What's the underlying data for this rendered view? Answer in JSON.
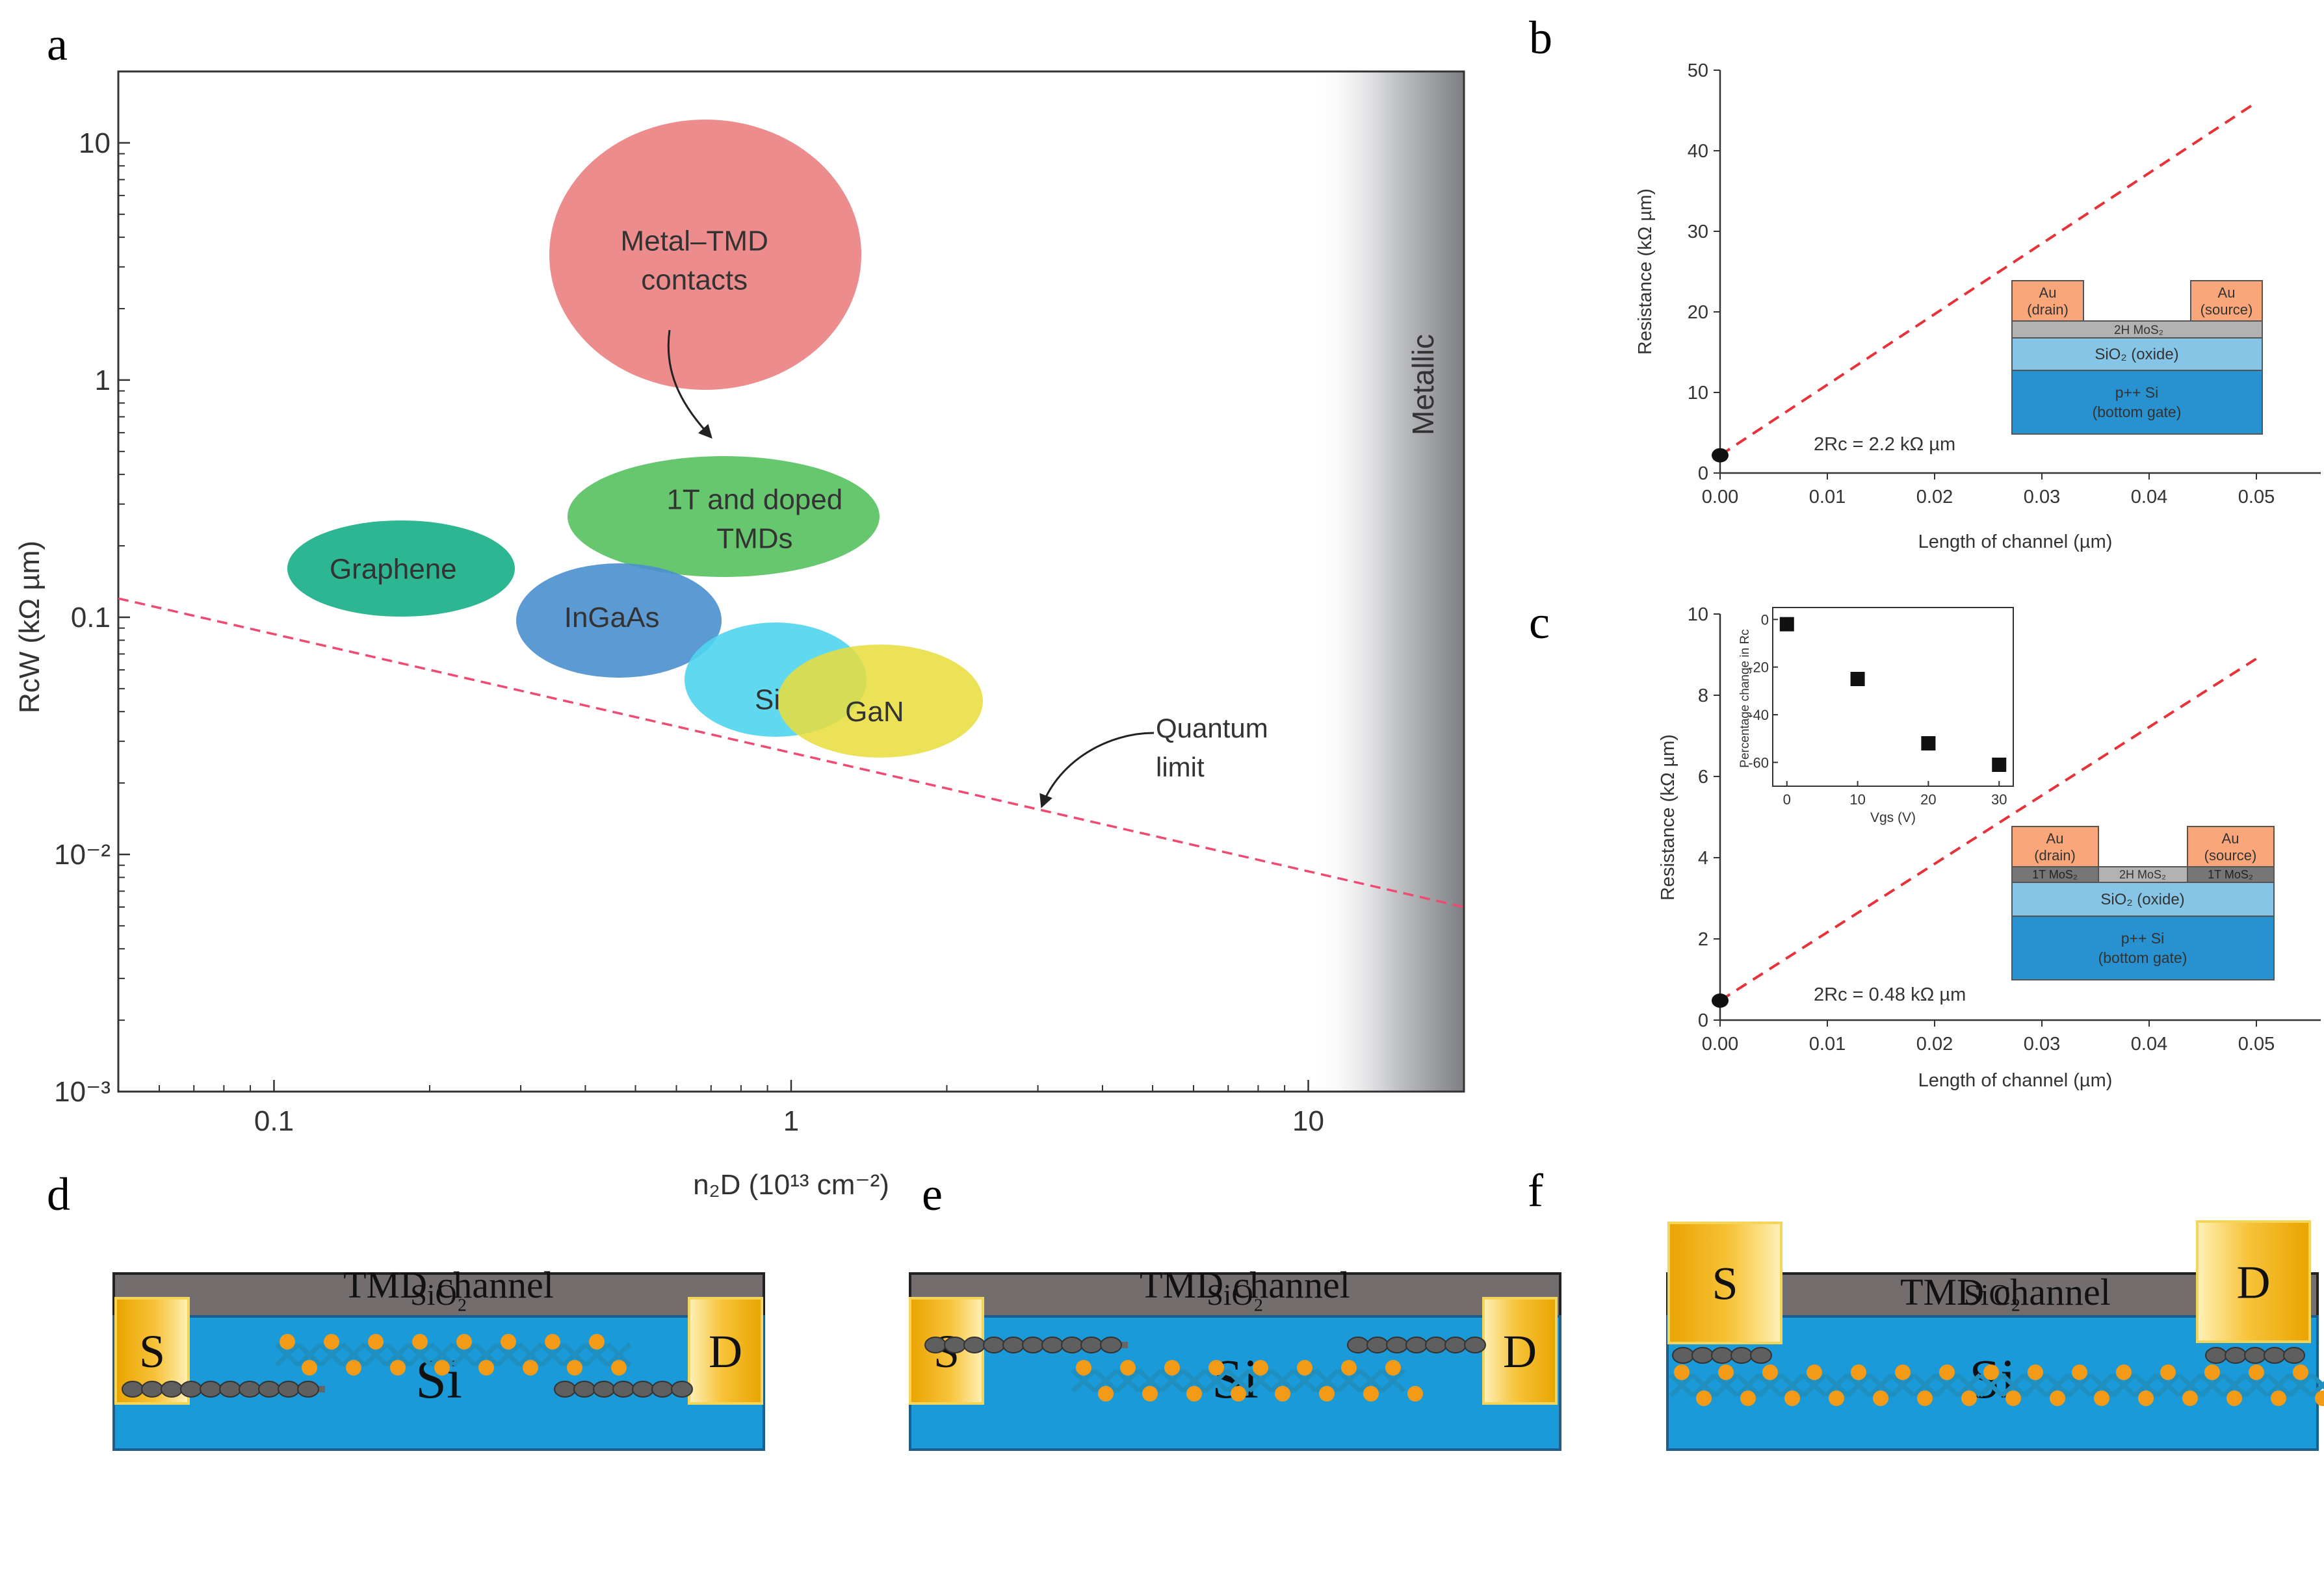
{
  "panel_labels": {
    "a": "a",
    "b": "b",
    "c": "c",
    "d": "d",
    "e": "e",
    "f": "f"
  },
  "colors": {
    "contact_gold": "#f2b500",
    "sio2": "#736d6d",
    "si": "#1a9ad8",
    "quantum_limit": "#f04a73",
    "fit_line": "#e8323a",
    "tmd_orange": "#f39a17",
    "tmd_blue": "#1f8fbf"
  },
  "panel_a": {
    "xlabel": "n₂D (10¹³ cm⁻²)",
    "ylabel": "RcW (kΩ µm)",
    "metallic_label": "Metallic",
    "quantum_label_1": "Quantum",
    "quantum_label_2": "limit",
    "x_ticks": [
      "0.1",
      "1",
      "10"
    ],
    "y_ticks": [
      "10",
      "1",
      "0.1",
      "10⁻²",
      "10⁻³"
    ]
  },
  "chart_data": [
    {
      "type": "scatter",
      "panel": "a",
      "xlabel": "n₂D (10¹³ cm⁻²)",
      "ylabel": "RcW (kΩ µm)",
      "xscale": "log",
      "yscale": "log",
      "xlim": [
        0.05,
        20
      ],
      "ylim": [
        0.001,
        20
      ],
      "regions": [
        {
          "label_lines": [
            "Metal–TMD",
            "contacts"
          ],
          "x": 0.65,
          "y": 3.2
        },
        {
          "label_lines": [
            "1T and doped",
            "TMDs"
          ],
          "x": 0.85,
          "y": 0.26
        },
        {
          "label_lines": [
            "Graphene"
          ],
          "x": 0.17,
          "y": 0.16
        },
        {
          "label_lines": [
            "InGaAs"
          ],
          "x": 0.45,
          "y": 0.1
        },
        {
          "label_lines": [
            "Si"
          ],
          "x": 0.9,
          "y": 0.045
        },
        {
          "label_lines": [
            "GaN"
          ],
          "x": 1.45,
          "y": 0.04
        }
      ],
      "lines": [
        {
          "name": "Quantum limit",
          "x": [
            0.05,
            20
          ],
          "y": [
            0.12,
            0.006
          ],
          "style": "dashed"
        }
      ],
      "annotations": [
        "Metallic",
        "Quantum limit"
      ]
    },
    {
      "type": "line",
      "panel": "b",
      "xlabel": "Length of channel (µm)",
      "ylabel": "Resistance (kΩ µm)",
      "xlim": [
        0,
        0.056
      ],
      "ylim": [
        0,
        50
      ],
      "x_ticks": [
        "0.00",
        "0.01",
        "0.02",
        "0.03",
        "0.04",
        "0.05"
      ],
      "y_ticks": [
        "0",
        "10",
        "20",
        "30",
        "40",
        "50"
      ],
      "series": [
        {
          "name": "Fit",
          "style": "dashed",
          "x": [
            0.0,
            0.05
          ],
          "y": [
            2.2,
            46
          ]
        },
        {
          "name": "Intercept",
          "style": "point",
          "x": [
            0.0
          ],
          "y": [
            2.2
          ]
        }
      ],
      "annotation": "2Rc = 2.2 kΩ µm",
      "inset_layers": [
        "Au (drain)",
        "Au (source)",
        "2H MoS₂",
        "SiO₂ (oxide)",
        "p++ Si (bottom gate)"
      ]
    },
    {
      "type": "line",
      "panel": "c",
      "xlabel": "Length of channel (µm)",
      "ylabel": "Resistance (kΩ µm)",
      "xlim": [
        0,
        0.056
      ],
      "ylim": [
        0,
        10
      ],
      "x_ticks": [
        "0.00",
        "0.01",
        "0.02",
        "0.03",
        "0.04",
        "0.05"
      ],
      "y_ticks": [
        "0",
        "2",
        "4",
        "6",
        "8",
        "10"
      ],
      "series": [
        {
          "name": "Fit",
          "style": "dashed",
          "x": [
            0.0,
            0.05
          ],
          "y": [
            0.48,
            8.9
          ]
        },
        {
          "name": "Intercept",
          "style": "point",
          "x": [
            0.0
          ],
          "y": [
            0.48
          ]
        }
      ],
      "annotation": "2Rc = 0.48 kΩ µm",
      "inset_layers": [
        "Au (drain)",
        "Au (source)",
        "1T MoS₂",
        "2H MoS₂",
        "1T MoS₂",
        "SiO₂ (oxide)",
        "p++ Si (bottom gate)"
      ]
    },
    {
      "type": "scatter",
      "panel": "c-inset",
      "xlabel": "Vgs (V)",
      "ylabel": "Percentage change in Rc",
      "xlim": [
        -2,
        32
      ],
      "ylim": [
        -70,
        5
      ],
      "x_ticks": [
        "0",
        "10",
        "20",
        "30"
      ],
      "y_ticks": [
        "0",
        "-20",
        "-40",
        "-60"
      ],
      "x": [
        0,
        10,
        20,
        30
      ],
      "y": [
        -2,
        -25,
        -52,
        -61
      ]
    }
  ],
  "panel_b": {
    "xlabel": "Length of channel (µm)",
    "ylabel": "Resistance (kΩ µm)",
    "annotation": "2Rc = 2.2 kΩ µm",
    "inset": {
      "drain": [
        "Au",
        "(drain)"
      ],
      "source": [
        "Au",
        "(source)"
      ],
      "channel": "2H MoS₂",
      "oxide": "SiO₂ (oxide)",
      "gate": [
        "p++ Si",
        "(bottom gate)"
      ]
    }
  },
  "panel_c": {
    "xlabel": "Length of channel (µm)",
    "ylabel": "Resistance (kΩ µm)",
    "annotation": "2Rc = 0.48 kΩ µm",
    "inset_xlabel": "Vgs (V)",
    "inset_ylabel": "Percentage change in Rc",
    "device": {
      "drain": [
        "Au",
        "(drain)"
      ],
      "source": [
        "Au",
        "(source)"
      ],
      "left_1t": "1T MoS₂",
      "channel": "2H MoS₂",
      "right_1t": "1T MoS₂",
      "oxide": "SiO₂ (oxide)",
      "gate": [
        "p++ Si",
        "(bottom gate)"
      ]
    }
  },
  "panels_def": {
    "source": "S",
    "drain": "D",
    "channel": "TMD channel",
    "oxide": "SiO₂",
    "substrate": "Si"
  }
}
